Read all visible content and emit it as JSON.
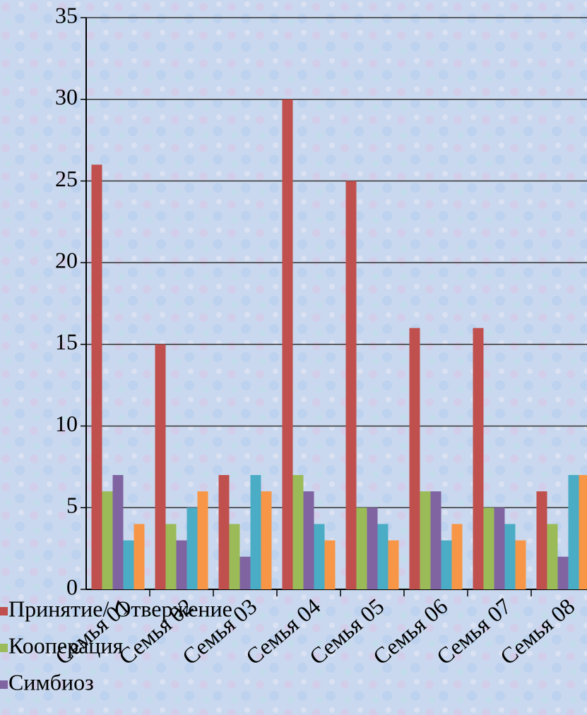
{
  "chart_data": {
    "type": "bar",
    "categories": [
      "Семья 01",
      "Семья 02",
      "Семья 03",
      "Семья 04",
      "Семья 05",
      "Семья 06",
      "Семья 07",
      "Семья 08"
    ],
    "series": [
      {
        "name": "Принятие/ Отвержение",
        "color": "#c0504d",
        "values": [
          26,
          15,
          7,
          30,
          25,
          16,
          16,
          6
        ]
      },
      {
        "name": "Кооперация",
        "color": "#9bbb59",
        "values": [
          6,
          4,
          4,
          7,
          5,
          6,
          5,
          4
        ]
      },
      {
        "name": "Симбиоз",
        "color": "#8064a2",
        "values": [
          7,
          3,
          2,
          6,
          5,
          6,
          5,
          2
        ]
      },
      {
        "color": "#4bacc6",
        "values": [
          3,
          5,
          7,
          4,
          4,
          3,
          4,
          7
        ]
      },
      {
        "color": "#f79646",
        "values": [
          4,
          6,
          6,
          3,
          3,
          4,
          3,
          7
        ]
      }
    ],
    "ylim": [
      0,
      35
    ],
    "yticks": [
      0,
      5,
      10,
      15,
      20,
      25,
      30,
      35
    ],
    "grid": true
  }
}
